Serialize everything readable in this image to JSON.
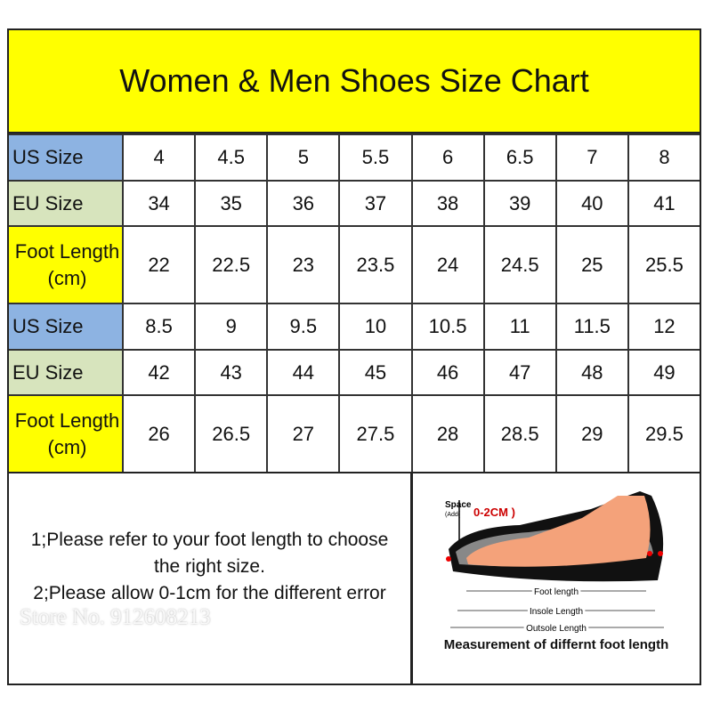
{
  "title": "Women & Men Shoes Size Chart",
  "rows": [
    {
      "label": "US Size",
      "kind": "us",
      "values": [
        "4",
        "4.5",
        "5",
        "5.5",
        "6",
        "6.5",
        "7",
        "8"
      ]
    },
    {
      "label": "EU Size",
      "kind": "eu",
      "values": [
        "34",
        "35",
        "36",
        "37",
        "38",
        "39",
        "40",
        "41"
      ]
    },
    {
      "label": "Foot Length (cm)",
      "kind": "foot",
      "values": [
        "22",
        "22.5",
        "23",
        "23.5",
        "24",
        "24.5",
        "25",
        "25.5"
      ]
    },
    {
      "label": "US Size",
      "kind": "us",
      "values": [
        "8.5",
        "9",
        "9.5",
        "10",
        "10.5",
        "11",
        "11.5",
        "12"
      ]
    },
    {
      "label": "EU Size",
      "kind": "eu",
      "values": [
        "42",
        "43",
        "44",
        "45",
        "46",
        "47",
        "48",
        "49"
      ]
    },
    {
      "label": "Foot Length (cm)",
      "kind": "foot",
      "values": [
        "26",
        "26.5",
        "27",
        "27.5",
        "28",
        "28.5",
        "29",
        "29.5"
      ]
    }
  ],
  "notes": [
    "1;Please refer to your foot length to choose the right size.",
    "2;Please allow 0-1cm for the different error"
  ],
  "diagram": {
    "space": "Space",
    "add": "(Add(",
    "range": "0-2CM )",
    "foot": "Foot length",
    "insole": "Insole Length",
    "outsole": "Outsole Length",
    "caption": "Measurement of differnt foot length"
  },
  "watermark": "Store No. 912608213",
  "colors": {
    "title_bg": "#ffff00",
    "us_bg": "#8db3e2",
    "eu_bg": "#d7e4bd",
    "foot_bg": "#ffff00"
  }
}
